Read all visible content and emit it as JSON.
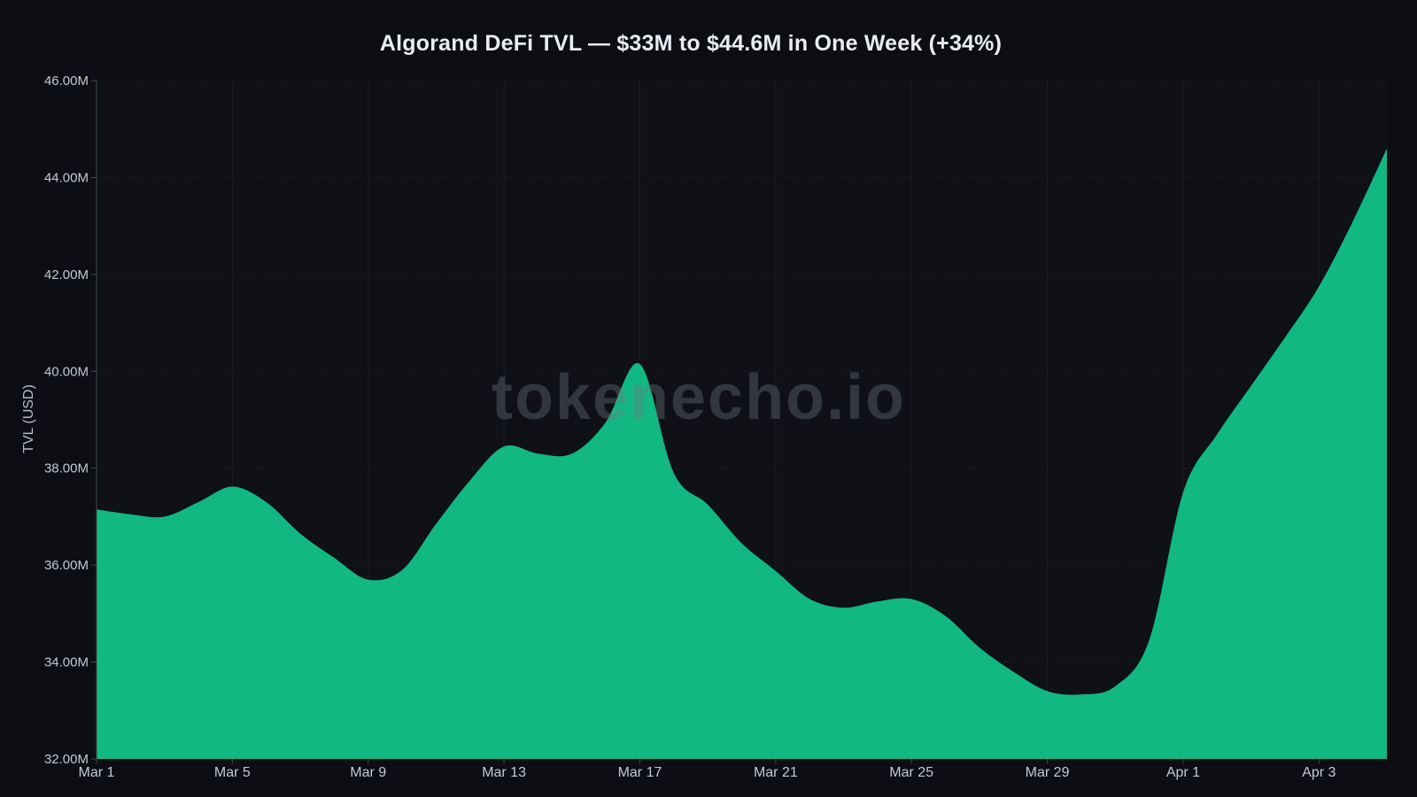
{
  "header": {
    "title": "Algorand DeFi TVL — $33M to $44.6M in One Week (+34%)"
  },
  "watermark": {
    "text": "tokenecho.io"
  },
  "chart_data": {
    "type": "area",
    "title": "Algorand DeFi TVL — $33M to $44.6M in One Week (+34%)",
    "xlabel": "",
    "ylabel": "TVL (USD)",
    "unit": "USD millions",
    "grid": true,
    "legend": false,
    "x_axis": {
      "tick_labels": [
        "Mar 1",
        "Mar 5",
        "Mar 9",
        "Mar 13",
        "Mar 17",
        "Mar 21",
        "Mar 25",
        "Mar 29",
        "Apr 1",
        "Apr 3"
      ],
      "tick_point_indices": [
        0,
        4,
        8,
        12,
        16,
        20,
        24,
        28,
        32,
        36
      ]
    },
    "y_axis": {
      "min": 32,
      "max": 46,
      "tick_step": 2,
      "tick_values": [
        32,
        34,
        36,
        38,
        40,
        42,
        44,
        46
      ],
      "tick_labels": [
        "32.00M",
        "34.00M",
        "36.00M",
        "38.00M",
        "40.00M",
        "42.00M",
        "44.00M",
        "46.00M"
      ]
    },
    "series": [
      {
        "name": "TVL (USD)",
        "color": "#12b881",
        "values": [
          37.15,
          37.05,
          37.0,
          37.3,
          37.62,
          37.3,
          36.65,
          36.15,
          35.7,
          35.9,
          36.85,
          37.75,
          38.45,
          38.3,
          38.3,
          38.95,
          40.15,
          37.9,
          37.25,
          36.45,
          35.88,
          35.3,
          35.12,
          35.25,
          35.3,
          34.95,
          34.3,
          33.8,
          33.4,
          33.33,
          33.5,
          34.45,
          37.5,
          38.7,
          39.7,
          40.7,
          41.75,
          43.1,
          44.6
        ]
      }
    ]
  },
  "colors": {
    "background": "#0c0e13",
    "area_fill": "#12b881",
    "axis_line": "#3e4f49",
    "grid_horizontal": "rgba(255,255,255,0.10)",
    "grid_vertical": "rgba(255,255,255,0.055)",
    "tick_text": "#c4cad1",
    "title_text": "#e9edf2",
    "watermark_text": "rgba(108,118,130,0.38)"
  }
}
